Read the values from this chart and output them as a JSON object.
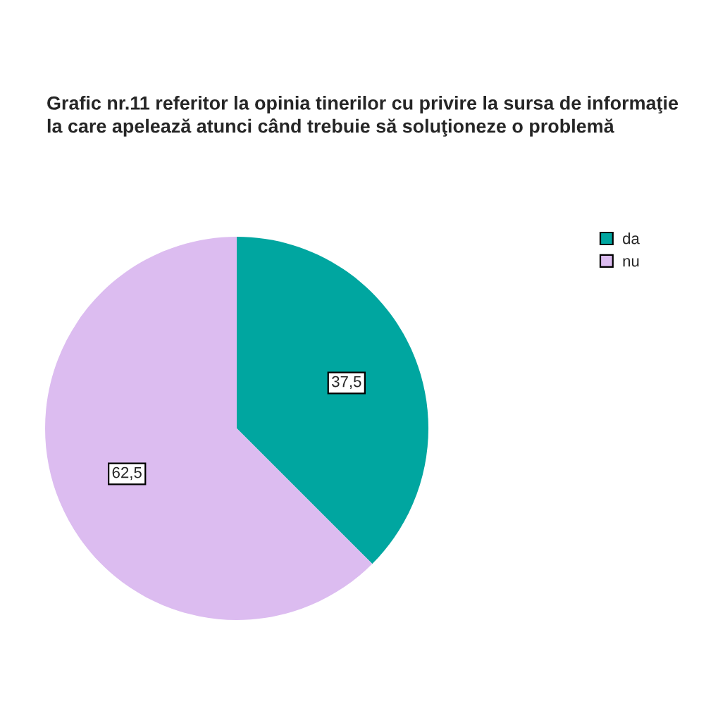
{
  "chart_data": {
    "type": "pie",
    "title": "Grafic nr.11 referitor la opinia tinerilor cu privire la sursa de informaţie\nla care apelează atunci când trebuie să soluţioneze o problemă",
    "categories": [
      "da",
      "nu"
    ],
    "values": [
      37.5,
      62.5
    ],
    "colors": [
      "#00a6a0",
      "#dcbcf0"
    ],
    "value_labels": [
      "37,5",
      "62,5"
    ],
    "legend": "top right"
  }
}
